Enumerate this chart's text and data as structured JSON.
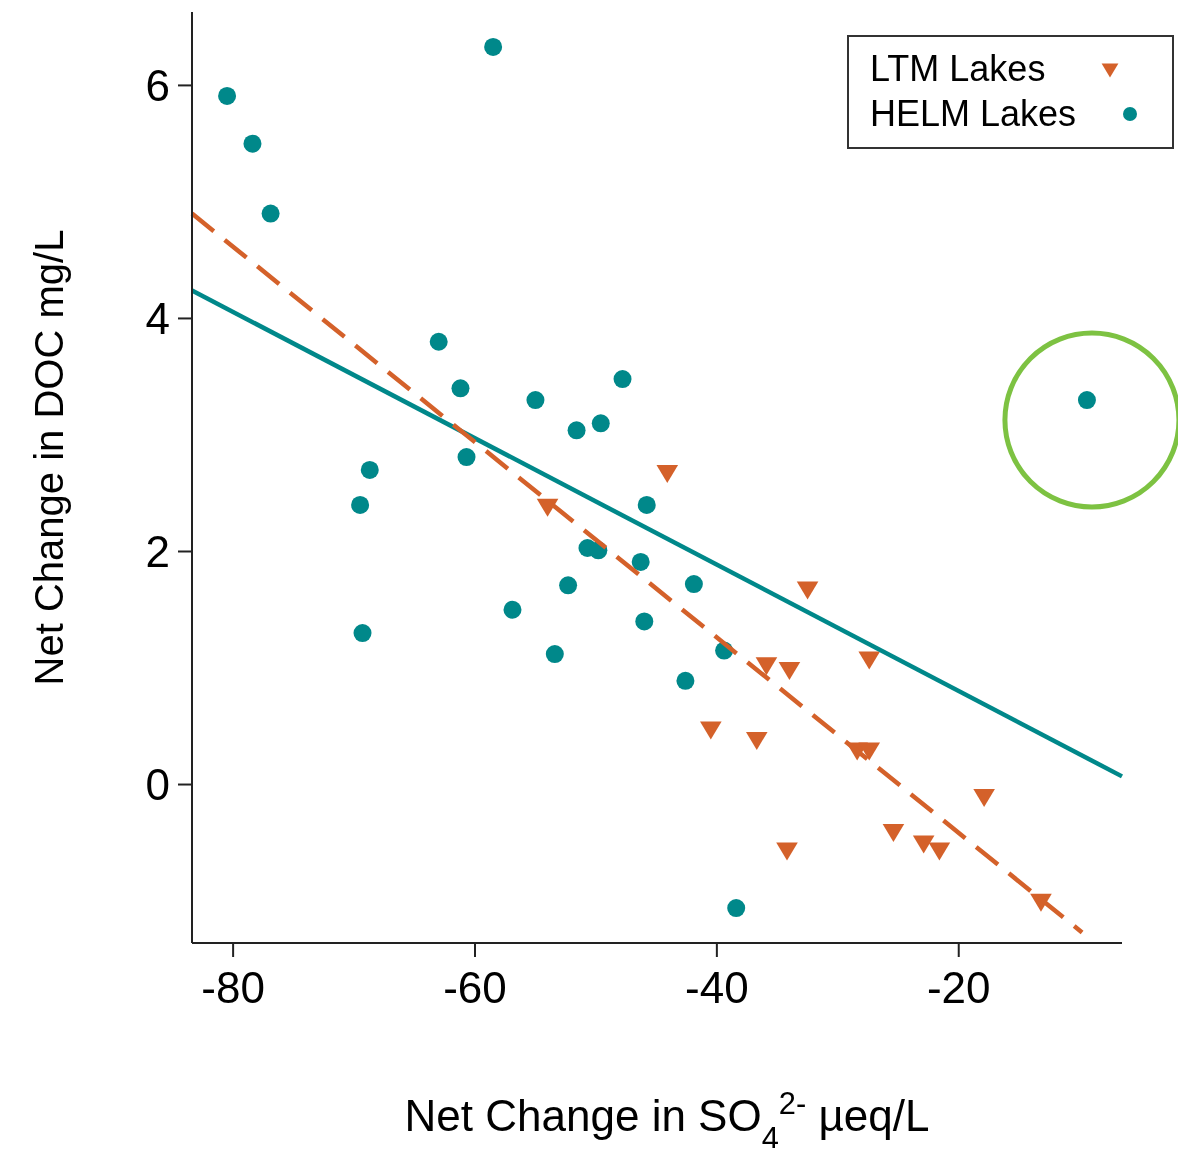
{
  "chart_data": {
    "type": "scatter",
    "xlabel": "Net Change in SO$_{4}$$^{2-}$ µeq/L",
    "ylabel": "Net Change in DOC mg/L",
    "xlim": [
      -83.4,
      -6.5
    ],
    "ylim": [
      -1.36,
      6.63
    ],
    "xticks": [
      -80,
      -60,
      -40,
      -20
    ],
    "yticks": [
      0,
      2,
      4,
      6
    ],
    "grid": false,
    "legend": "top right",
    "series": [
      {
        "name": "LTM Lakes",
        "color": "#d4612a",
        "marker": "triangle",
        "x": [
          -54.0,
          -44.1,
          -32.5,
          -27.4,
          -35.9,
          -34.0,
          -40.5,
          -36.7,
          -28.4,
          -27.4,
          -17.9,
          -25.4,
          -22.9,
          -21.6,
          -34.2,
          -13.2
        ],
        "values": [
          2.39,
          2.68,
          1.68,
          1.08,
          1.03,
          0.99,
          0.48,
          0.39,
          0.3,
          0.3,
          -0.1,
          -0.4,
          -0.5,
          -0.56,
          -0.56,
          -1.0
        ]
      },
      {
        "name": "HELM Lakes",
        "color": "#00888a",
        "marker": "circle",
        "x": [
          -80.5,
          -78.4,
          -76.9,
          -58.5,
          -63.0,
          -61.2,
          -55.0,
          -51.6,
          -49.6,
          -47.8,
          -60.7,
          -68.7,
          -69.5,
          -45.8,
          -50.7,
          -49.8,
          -46.3,
          -56.9,
          -52.3,
          -41.9,
          -46.0,
          -69.3,
          -53.4,
          -39.4,
          -42.6,
          -38.4,
          -9.4
        ],
        "values": [
          5.91,
          5.5,
          4.9,
          6.33,
          3.8,
          3.4,
          3.3,
          3.04,
          3.1,
          3.48,
          2.81,
          2.7,
          2.4,
          2.4,
          2.03,
          2.01,
          1.91,
          1.5,
          1.71,
          1.72,
          1.4,
          1.3,
          1.12,
          1.15,
          0.89,
          -1.06,
          3.3
        ]
      },
      {
        "type": "line",
        "color": "#00888a",
        "line_style": "solid",
        "x": [
          -83.4,
          -6.5
        ],
        "values": [
          4.24,
          0.07
        ]
      },
      {
        "type": "line",
        "color": "#d4612a",
        "line_style": "dashed",
        "x": [
          -83.4,
          -9.8
        ],
        "values": [
          4.9,
          -1.27
        ]
      }
    ]
  }
}
